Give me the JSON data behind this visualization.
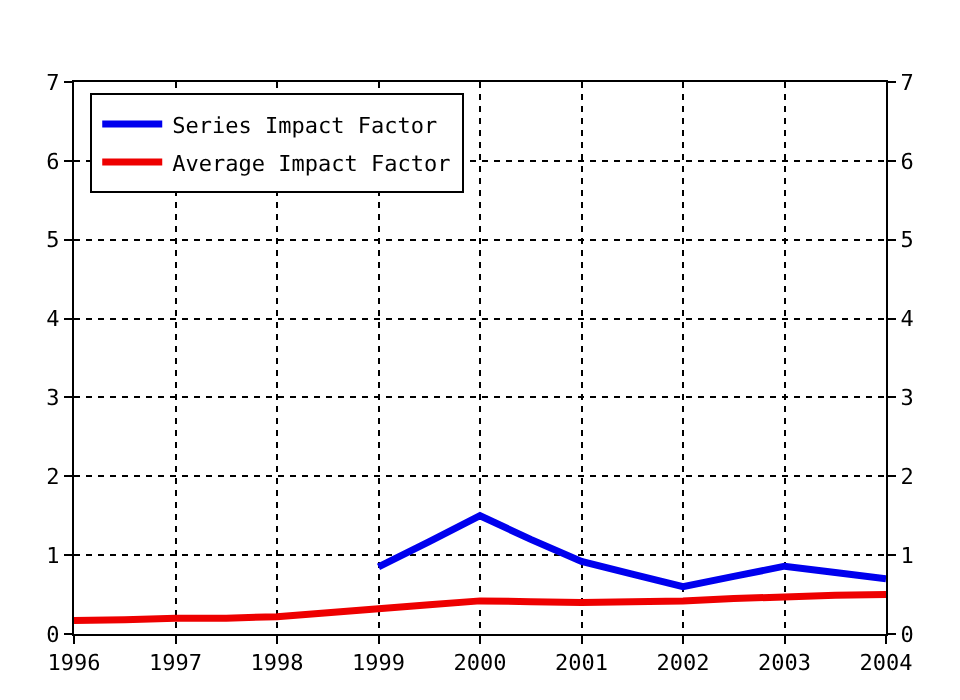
{
  "chart_data": {
    "type": "line",
    "x": [
      1996,
      1996.5,
      1997,
      1997.5,
      1998,
      1998.5,
      1999,
      1999.5,
      2000,
      2000.5,
      2001,
      2001.5,
      2002,
      2002.5,
      2003,
      2003.5,
      2004
    ],
    "series": [
      {
        "name": "Series Impact Factor",
        "color": "#0000ee",
        "values": [
          null,
          null,
          null,
          null,
          null,
          null,
          0.85,
          1.17,
          1.5,
          1.2,
          0.92,
          0.76,
          0.6,
          0.73,
          0.86,
          0.78,
          0.7
        ]
      },
      {
        "name": "Average Impact Factor",
        "color": "#ee0000",
        "values": [
          0.17,
          0.18,
          0.2,
          0.2,
          0.22,
          0.27,
          0.32,
          0.37,
          0.42,
          0.41,
          0.4,
          0.41,
          0.42,
          0.45,
          0.47,
          0.49,
          0.5
        ]
      }
    ],
    "xlim": [
      1996,
      2004
    ],
    "xticks": [
      1996,
      1997,
      1998,
      1999,
      2000,
      2001,
      2002,
      2003,
      2004
    ],
    "ylim": [
      0,
      7
    ],
    "yticks": [
      0,
      1,
      2,
      3,
      4,
      5,
      6,
      7
    ],
    "y2lim": [
      0,
      7
    ],
    "y2ticks": [
      0,
      1,
      2,
      3,
      4,
      5,
      6,
      7
    ],
    "grid": true,
    "legend": "top left",
    "line_style": "solid",
    "marker": "none"
  }
}
